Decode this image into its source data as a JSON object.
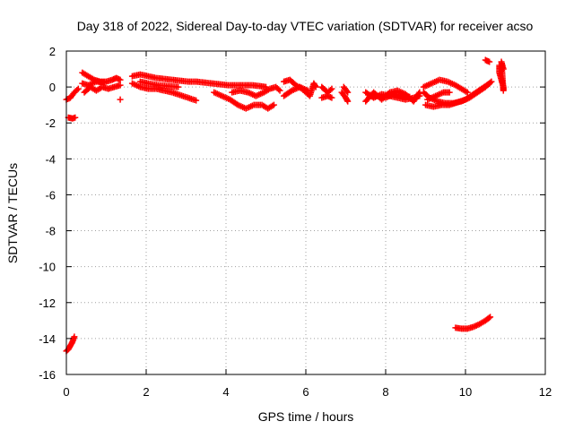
{
  "chart_data": {
    "type": "scatter",
    "title": "Day 318 of 2022, Sidereal Day-to-day VTEC variation (SDTVAR) for receiver acso",
    "xlabel": "GPS time / hours",
    "ylabel": "SDTVAR / TECUs",
    "xlim": [
      0,
      12
    ],
    "ylim": [
      -16,
      2
    ],
    "x_ticks": [
      0,
      2,
      4,
      6,
      8,
      10,
      12
    ],
    "y_ticks": [
      2,
      0,
      -2,
      -4,
      -6,
      -8,
      -10,
      -12,
      -14,
      -16
    ],
    "grid": true,
    "marker": "plus",
    "color": "#ff0000",
    "segments": [
      [
        [
          0.0,
          -14.7
        ],
        [
          0.05,
          -14.6
        ],
        [
          0.1,
          -14.4
        ],
        [
          0.15,
          -14.2
        ],
        [
          0.2,
          -13.9
        ]
      ],
      [
        [
          0.0,
          -0.7
        ],
        [
          0.1,
          -0.6
        ],
        [
          0.2,
          -0.3
        ],
        [
          0.3,
          -0.1
        ]
      ],
      [
        [
          0.05,
          -1.7
        ],
        [
          0.15,
          -1.75
        ],
        [
          0.22,
          -1.7
        ]
      ],
      [
        [
          0.4,
          0.8
        ],
        [
          0.55,
          0.6
        ],
        [
          0.7,
          0.4
        ],
        [
          0.85,
          0.3
        ],
        [
          1.0,
          0.3
        ],
        [
          1.15,
          0.4
        ],
        [
          1.25,
          0.5
        ],
        [
          1.35,
          0.4
        ]
      ],
      [
        [
          0.45,
          -0.3
        ],
        [
          0.6,
          0.0
        ],
        [
          0.75,
          -0.2
        ],
        [
          0.9,
          0.0
        ],
        [
          1.05,
          -0.1
        ],
        [
          1.2,
          0.0
        ],
        [
          1.35,
          0.1
        ]
      ],
      [
        [
          0.4,
          0.2
        ],
        [
          0.55,
          0.1
        ],
        [
          0.75,
          0.3
        ],
        [
          0.95,
          0.25
        ]
      ],
      [
        [
          1.35,
          -0.7
        ]
      ],
      [
        [
          1.65,
          0.6
        ],
        [
          1.85,
          0.7
        ],
        [
          2.05,
          0.6
        ],
        [
          2.25,
          0.5
        ],
        [
          2.45,
          0.45
        ],
        [
          2.65,
          0.4
        ],
        [
          2.85,
          0.35
        ],
        [
          3.05,
          0.3
        ],
        [
          3.25,
          0.3
        ],
        [
          3.45,
          0.25
        ],
        [
          3.65,
          0.2
        ],
        [
          3.85,
          0.15
        ],
        [
          4.05,
          0.1
        ],
        [
          4.25,
          0.1
        ],
        [
          4.45,
          0.1
        ],
        [
          4.65,
          0.1
        ],
        [
          4.85,
          0.05
        ],
        [
          5.0,
          0.0
        ]
      ],
      [
        [
          1.65,
          0.2
        ],
        [
          1.85,
          0.0
        ],
        [
          2.05,
          -0.1
        ],
        [
          2.25,
          -0.1
        ],
        [
          2.45,
          -0.2
        ],
        [
          2.65,
          -0.3
        ],
        [
          2.85,
          -0.45
        ],
        [
          3.05,
          -0.6
        ],
        [
          3.25,
          -0.75
        ]
      ],
      [
        [
          1.85,
          0.3
        ],
        [
          2.05,
          0.2
        ],
        [
          2.3,
          0.1
        ],
        [
          2.55,
          0.05
        ],
        [
          2.8,
          0.0
        ]
      ],
      [
        [
          3.7,
          -0.3
        ],
        [
          3.9,
          -0.5
        ],
        [
          4.1,
          -0.7
        ],
        [
          4.3,
          -1.0
        ],
        [
          4.5,
          -1.2
        ],
        [
          4.7,
          -1.0
        ],
        [
          4.9,
          -1.0
        ],
        [
          5.05,
          -1.2
        ],
        [
          5.2,
          -1.0
        ]
      ],
      [
        [
          4.15,
          -0.3
        ],
        [
          4.35,
          -0.2
        ],
        [
          4.55,
          -0.3
        ],
        [
          4.75,
          -0.5
        ],
        [
          4.95,
          -0.3
        ],
        [
          5.1,
          -0.1
        ],
        [
          5.25,
          0.0
        ],
        [
          5.35,
          -0.2
        ]
      ],
      [
        [
          5.45,
          0.3
        ],
        [
          5.6,
          0.4
        ],
        [
          5.75,
          0.1
        ],
        [
          5.9,
          -0.1
        ],
        [
          6.0,
          -0.3
        ],
        [
          6.1,
          -0.5
        ],
        [
          6.2,
          0.2
        ],
        [
          6.25,
          0.0
        ]
      ],
      [
        [
          5.45,
          -0.5
        ],
        [
          5.65,
          -0.2
        ],
        [
          5.85,
          0.0
        ],
        [
          6.05,
          -0.2
        ]
      ],
      [
        [
          6.4,
          0.0
        ],
        [
          6.55,
          -0.3
        ],
        [
          6.65,
          -0.1
        ]
      ],
      [
        [
          6.4,
          -0.6
        ],
        [
          6.55,
          -0.5
        ],
        [
          6.65,
          -0.6
        ]
      ],
      [
        [
          6.9,
          -0.3
        ],
        [
          7.0,
          -0.6
        ],
        [
          7.05,
          -0.8
        ]
      ],
      [
        [
          6.95,
          0.0
        ],
        [
          7.05,
          -0.3
        ]
      ],
      [
        [
          7.5,
          -0.3
        ],
        [
          7.7,
          -0.6
        ],
        [
          7.9,
          -0.4
        ],
        [
          8.1,
          -0.5
        ],
        [
          8.3,
          -0.6
        ],
        [
          8.5,
          -0.7
        ],
        [
          8.7,
          -0.6
        ],
        [
          8.85,
          -0.5
        ]
      ],
      [
        [
          7.5,
          -0.8
        ],
        [
          7.7,
          -0.3
        ],
        [
          7.9,
          -0.7
        ],
        [
          8.1,
          -0.3
        ],
        [
          8.3,
          -0.2
        ],
        [
          8.5,
          -0.4
        ],
        [
          8.7,
          -0.8
        ],
        [
          8.85,
          -0.3
        ]
      ],
      [
        [
          7.6,
          -0.5
        ],
        [
          7.8,
          -0.5
        ],
        [
          8.0,
          -0.6
        ],
        [
          8.2,
          -0.4
        ],
        [
          8.4,
          -0.5
        ],
        [
          8.6,
          -0.55
        ]
      ],
      [
        [
          8.95,
          -0.3
        ],
        [
          9.1,
          -0.6
        ],
        [
          9.3,
          -0.8
        ],
        [
          9.5,
          -0.9
        ],
        [
          9.7,
          -0.9
        ],
        [
          9.9,
          -0.8
        ],
        [
          10.1,
          -0.6
        ],
        [
          10.3,
          -0.3
        ],
        [
          10.5,
          0.0
        ],
        [
          10.65,
          0.3
        ]
      ],
      [
        [
          8.95,
          0.0
        ],
        [
          9.15,
          0.2
        ],
        [
          9.35,
          0.4
        ],
        [
          9.55,
          0.3
        ],
        [
          9.75,
          0.1
        ],
        [
          9.9,
          -0.1
        ],
        [
          10.05,
          -0.3
        ]
      ],
      [
        [
          9.0,
          -1.0
        ],
        [
          9.2,
          -1.1
        ],
        [
          9.4,
          -1.0
        ],
        [
          9.6,
          -1.0
        ],
        [
          9.8,
          -0.85
        ],
        [
          10.0,
          -0.7
        ],
        [
          10.2,
          -0.4
        ],
        [
          10.4,
          -0.1
        ],
        [
          10.6,
          0.2
        ]
      ],
      [
        [
          9.05,
          -0.7
        ],
        [
          9.25,
          -0.5
        ],
        [
          9.45,
          -0.3
        ],
        [
          9.6,
          -0.3
        ]
      ],
      [
        [
          10.5,
          1.5
        ],
        [
          10.6,
          1.4
        ]
      ],
      [
        [
          10.85,
          1.2
        ],
        [
          10.85,
          0.8
        ],
        [
          10.9,
          0.4
        ],
        [
          10.95,
          0.0
        ],
        [
          10.95,
          -0.2
        ],
        [
          10.9,
          1.4
        ],
        [
          10.95,
          1.0
        ]
      ],
      [
        [
          9.75,
          -13.4
        ],
        [
          9.9,
          -13.45
        ],
        [
          10.05,
          -13.45
        ],
        [
          10.2,
          -13.35
        ],
        [
          10.35,
          -13.2
        ],
        [
          10.5,
          -13.0
        ],
        [
          10.62,
          -12.8
        ]
      ]
    ]
  }
}
